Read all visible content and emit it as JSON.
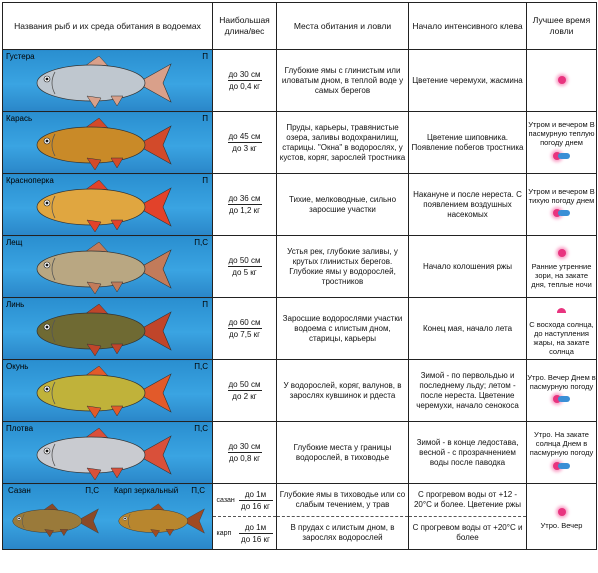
{
  "headers": {
    "name": "Названия рыб и их среда обитания в водоемах",
    "size": "Наибольшая длина/вес",
    "places": "Места обитания и ловли",
    "start": "Начало интенсивного клева",
    "best": "Лучшее время ловли"
  },
  "colors": {
    "water": "#3aa4e2",
    "sun": "#e8347f",
    "cloud": "#3b8fd6"
  },
  "rows": [
    {
      "name": "Густера",
      "code": "П",
      "len": "до 30 см",
      "wt": "до 0,4 кг",
      "places": "Глубокие ямы с глинистым или иловатым дном, в теплой воде у самых берегов",
      "start": "Цветение черемухи, жасмина",
      "best": "",
      "icons": "sun"
    },
    {
      "name": "Карась",
      "code": "П",
      "len": "до 45 см",
      "wt": "до 3 кг",
      "places": "Пруды, карьеры, травянистые озера, заливы водохранилищ, старицы. \"Окна\" в водорослях, у кустов, коряг, зарослей тростника",
      "start": "Цветение шиповника. Появление побегов тростника",
      "best": "Утром и вечером В пасмурную теплую погоду днем",
      "icons": "sun-cloud"
    },
    {
      "name": "Красноперка",
      "code": "П",
      "len": "до 36 см",
      "wt": "до 1,2 кг",
      "places": "Тихие, мелководные, сильно заросшие участки",
      "start": "Накануне и после нереста. С появлением воздушных насекомых",
      "best": "Утром и вечером В тихую погоду днем",
      "icons": "sun-cloud"
    },
    {
      "name": "Лещ",
      "code": "П,С",
      "len": "до 50 см",
      "wt": "до 5 кг",
      "places": "Устья рек, глубокие заливы, у крутых глинистых берегов. Глубокие ямы у водорослей, тростников",
      "start": "Начало колошения ржы",
      "best": "Ранние утренние зори, на закате дня, теплые ночи",
      "icons": "sun"
    },
    {
      "name": "Линь",
      "code": "П",
      "len": "до 60 см",
      "wt": "до 7,5 кг",
      "places": "Заросшие водорослями участки водоема с илистым дном, старицы, карьеры",
      "start": "Конец мая, начало лета",
      "best": "С восхода солнца, до наступления жары, на закате солнца",
      "icons": "sunset"
    },
    {
      "name": "Окунь",
      "code": "П,С",
      "len": "до 50 см",
      "wt": "до 2 кг",
      "places": "У водорослей, коряг, валунов, в зарослях кувшинок и рдеста",
      "start": "Зимой - по первольдью и последнему льду; летом - после нереста. Цветение черемухи, начало сенокоса",
      "best": "Утро. Вечер Днем в пасмурную погоду",
      "icons": "sun-cloud"
    },
    {
      "name": "Плотва",
      "code": "П,С",
      "len": "до 30 см",
      "wt": "до 0,8 кг",
      "places": "Глубокие места у границы водорослей, в тиховодье",
      "start": "Зимой - в конце ледостава, весной - с прозрачнением воды после паводка",
      "best": "Утро. На закате солнца Днем в пасмурную погоду",
      "icons": "sun-cloud"
    }
  ],
  "carp": {
    "name1": "Сазан",
    "code1": "П,С",
    "name2": "Карп зеркальный",
    "code2": "П,С",
    "sub": [
      {
        "label": "сазан",
        "len": "до 1м",
        "wt": "до 16 кг",
        "places": "Глубокие ямы в тиховодье или со слабым течением, у трав",
        "start": "С прогревом воды от +12 - 20°С и более. Цветение ржы"
      },
      {
        "label": "карп",
        "len": "до 1м",
        "wt": "до 16 кг",
        "places": "В прудах с илистым дном, в зарослях водорослей",
        "start": "С прогревом воды от +20°С и более"
      }
    ],
    "best": "Утро. Вечер"
  }
}
